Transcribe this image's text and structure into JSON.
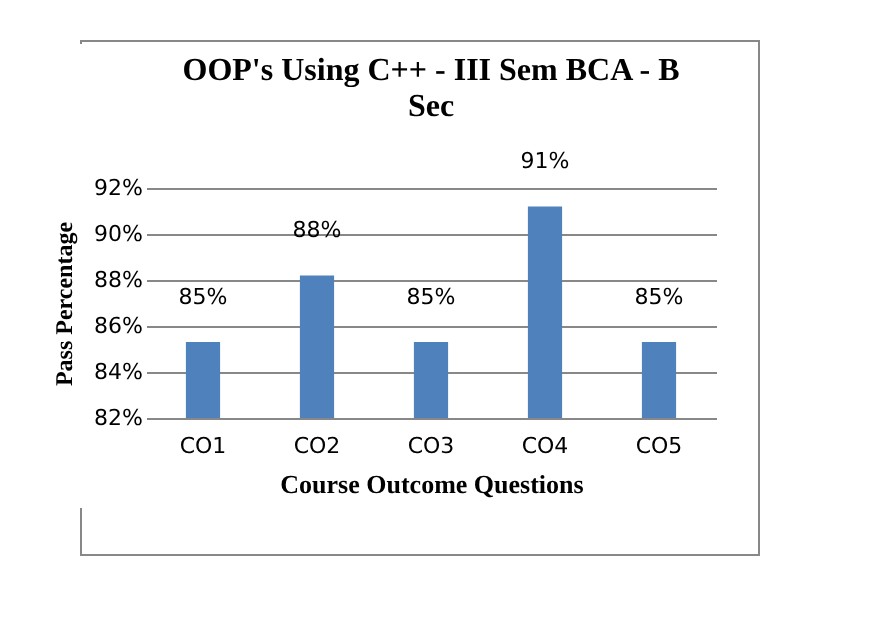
{
  "chart_data": {
    "type": "bar",
    "title": "OOP's Using C++ - III Sem BCA - B Sec",
    "xlabel": "Course Outcome Questions",
    "ylabel": "Pass Percentage",
    "categories": [
      "CO1",
      "CO2",
      "CO3",
      "CO4",
      "CO5"
    ],
    "values": [
      85.3,
      88.2,
      85.3,
      91.2,
      85.3
    ],
    "value_labels": [
      "85%",
      "88%",
      "85%",
      "91%",
      "85%"
    ],
    "color": "#4f81bd",
    "ylim": [
      82,
      92
    ],
    "yticks": [
      {
        "value": 82,
        "label": "82%"
      },
      {
        "value": 84,
        "label": "84%"
      },
      {
        "value": 86,
        "label": "86%"
      },
      {
        "value": 88,
        "label": "88%"
      },
      {
        "value": 90,
        "label": "90%"
      },
      {
        "value": 92,
        "label": "92%"
      }
    ],
    "grid": "y"
  }
}
